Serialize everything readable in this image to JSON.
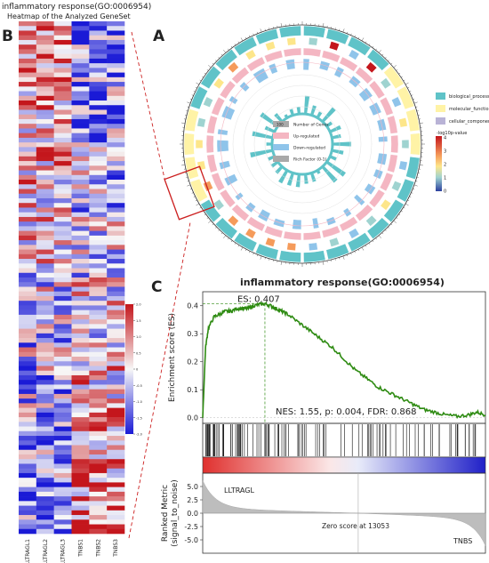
{
  "panels": {
    "a": "A",
    "b": "B",
    "c": "C"
  },
  "heatmap": {
    "title_line1": "inflammatory response(GO:0006954)",
    "title_line2": "Heatmap of the Analyzed GeneSet",
    "samples": [
      "LLTRAGL1",
      "LLTRAGL2",
      "LLTRAGL3",
      "TNBS1",
      "TNBS2",
      "TNBS3"
    ],
    "row_count": 110,
    "colorbar_ticks": [
      "2.0",
      "1.5",
      "1.0",
      "0.5",
      "0",
      "-0.5",
      "-1.0",
      "-1.5",
      "-2.0"
    ],
    "colors": {
      "high": "#c4161c",
      "mid": "#f7f7f7",
      "low": "#1a1ad6"
    }
  },
  "circos": {
    "legend_categories": [
      {
        "label": "biological_process",
        "color": "#5fc3c8"
      },
      {
        "label": "molecular_function",
        "color": "#fff3a6"
      },
      {
        "label": "cellular_component",
        "color": "#b9b3d6"
      }
    ],
    "pvalue_title": "-log10p-value",
    "pvalue_ticks": [
      "4",
      "3",
      "2",
      "1",
      "0"
    ],
    "center_legend": [
      {
        "label": "Number of Genes",
        "sample": "100",
        "color": "#a9a9a9"
      },
      {
        "label": "Up-regulated",
        "sample": "",
        "color": "#f4b6c2"
      },
      {
        "label": "Down-regulated",
        "sample": "",
        "color": "#8fc4ea"
      },
      {
        "label": "Rich Factor (0-1)",
        "sample": "",
        "color": "#a9a9a9"
      }
    ]
  },
  "chart_data": {
    "type": "line",
    "title": "inflammatory response(GO:0006954)",
    "ylabel": "Enrichment score (ES)",
    "ylim": [
      -0.02,
      0.45
    ],
    "yticks": [
      "0.0",
      "0.1",
      "0.2",
      "0.3",
      "0.4"
    ],
    "es_label": "ES: 0.407",
    "es_peak": 0.407,
    "stats_label": "NES: 1.55, p: 0.004, FDR: 0.868",
    "metric_ylabel_line1": "Ranked Metric",
    "metric_ylabel_line2": "(signal_to_noise)",
    "metric_ticks": [
      "5.0",
      "2.5",
      "0.0",
      "-2.5",
      "-5.0"
    ],
    "left_group": "LLTRAGL",
    "right_group": "TNBS",
    "zero_cross_label": "Zero score at 13053",
    "curve_color": "#2e8b12",
    "rank_fraction": [
      0,
      0.01,
      0.02,
      0.04,
      0.06,
      0.08,
      0.1,
      0.12,
      0.14,
      0.16,
      0.18,
      0.2,
      0.22,
      0.24,
      0.26,
      0.28,
      0.3,
      0.34,
      0.38,
      0.42,
      0.46,
      0.5,
      0.54,
      0.58,
      0.62,
      0.66,
      0.7,
      0.74,
      0.78,
      0.82,
      0.86,
      0.9,
      0.94,
      0.97,
      1.0
    ],
    "es_values": [
      0.0,
      0.25,
      0.32,
      0.36,
      0.37,
      0.38,
      0.38,
      0.39,
      0.39,
      0.39,
      0.4,
      0.405,
      0.407,
      0.4,
      0.39,
      0.38,
      0.37,
      0.34,
      0.31,
      0.28,
      0.25,
      0.21,
      0.17,
      0.14,
      0.11,
      0.09,
      0.07,
      0.05,
      0.03,
      0.02,
      0.01,
      0.005,
      0.01,
      0.02,
      0.01
    ]
  }
}
